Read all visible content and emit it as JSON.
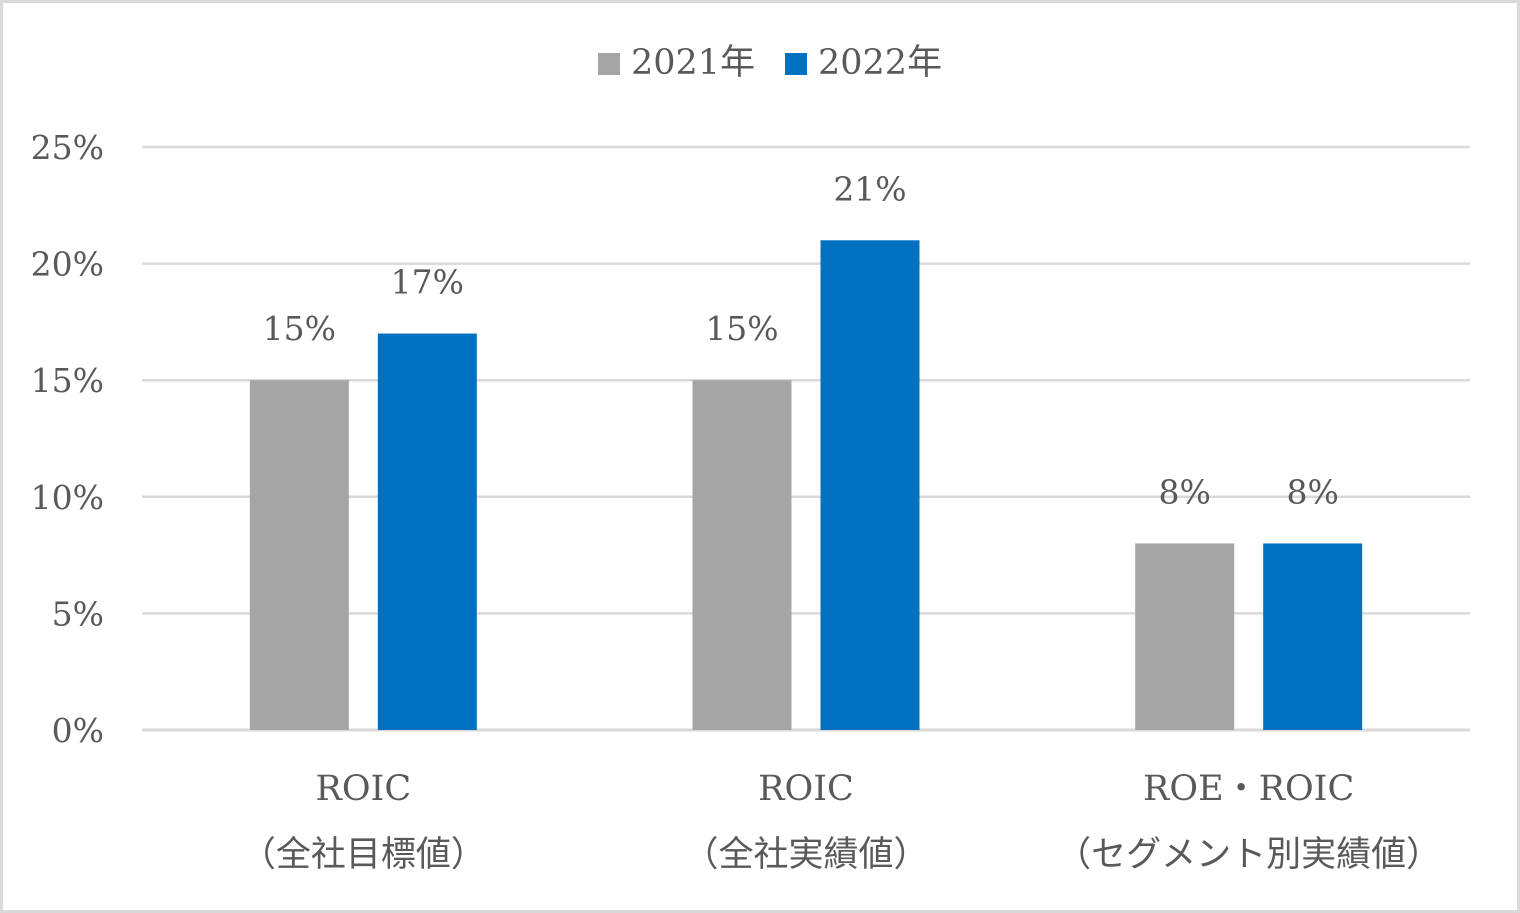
{
  "chart_data": {
    "type": "bar",
    "title": "",
    "xlabel": "",
    "ylabel": "",
    "ylim": [
      0,
      25
    ],
    "yticks": [
      "0%",
      "5%",
      "10%",
      "15%",
      "20%",
      "25%"
    ],
    "grid": true,
    "legend_position": "top-center",
    "categories": [
      {
        "line1": "ROIC",
        "line2": "（全社目標値）"
      },
      {
        "line1": "ROIC",
        "line2": "（全社実績値）"
      },
      {
        "line1": "ROE・ROIC",
        "line2": "（セグメント別実績値）"
      }
    ],
    "series": [
      {
        "name": "2021年",
        "color": "#a5a5a5",
        "values": [
          15,
          15,
          8
        ],
        "labels": [
          "15%",
          "15%",
          "8%"
        ]
      },
      {
        "name": "2022年",
        "color": "#0070c0",
        "values": [
          17,
          21,
          8
        ],
        "labels": [
          "17%",
          "21%",
          "8%"
        ]
      }
    ]
  }
}
